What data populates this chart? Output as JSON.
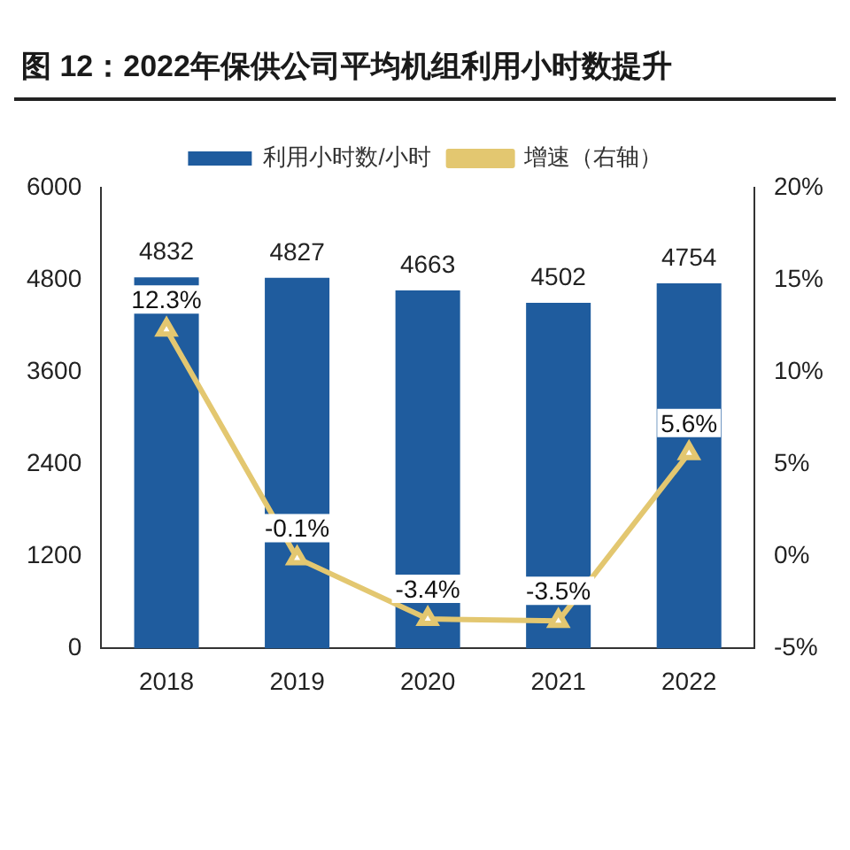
{
  "chart_data": {
    "type": "bar",
    "title": "图 12：2022年保供公司平均机组利用小时数提升",
    "categories": [
      "2018",
      "2019",
      "2020",
      "2021",
      "2022"
    ],
    "series": [
      {
        "name": "利用小时数/小时",
        "color": "#1f5c9e",
        "values": [
          4832,
          4827,
          4663,
          4502,
          4754
        ],
        "value_labels": [
          "4832",
          "4827",
          "4663",
          "4502",
          "4754"
        ]
      },
      {
        "name": "增速（右轴）",
        "type": "line",
        "axis": "y2",
        "color": "#e3c770",
        "marker": "triangle",
        "values": [
          12.3,
          -0.1,
          -3.4,
          -3.5,
          5.6
        ],
        "value_labels": [
          "12.3%",
          "-0.1%",
          "-3.4%",
          "-3.5%",
          "5.6%"
        ]
      }
    ],
    "ylim": [
      0,
      6000
    ],
    "yticks": [
      0,
      1200,
      2400,
      3600,
      4800,
      6000
    ],
    "y2lim": [
      -5,
      20
    ],
    "y2ticks": [
      {
        "value": -5,
        "label": "-5%"
      },
      {
        "value": 0,
        "label": "0%"
      },
      {
        "value": 5,
        "label": "5%"
      },
      {
        "value": 10,
        "label": "10%"
      },
      {
        "value": 15,
        "label": "15%"
      },
      {
        "value": 20,
        "label": "20%"
      }
    ],
    "grid": false,
    "legend": "top"
  }
}
